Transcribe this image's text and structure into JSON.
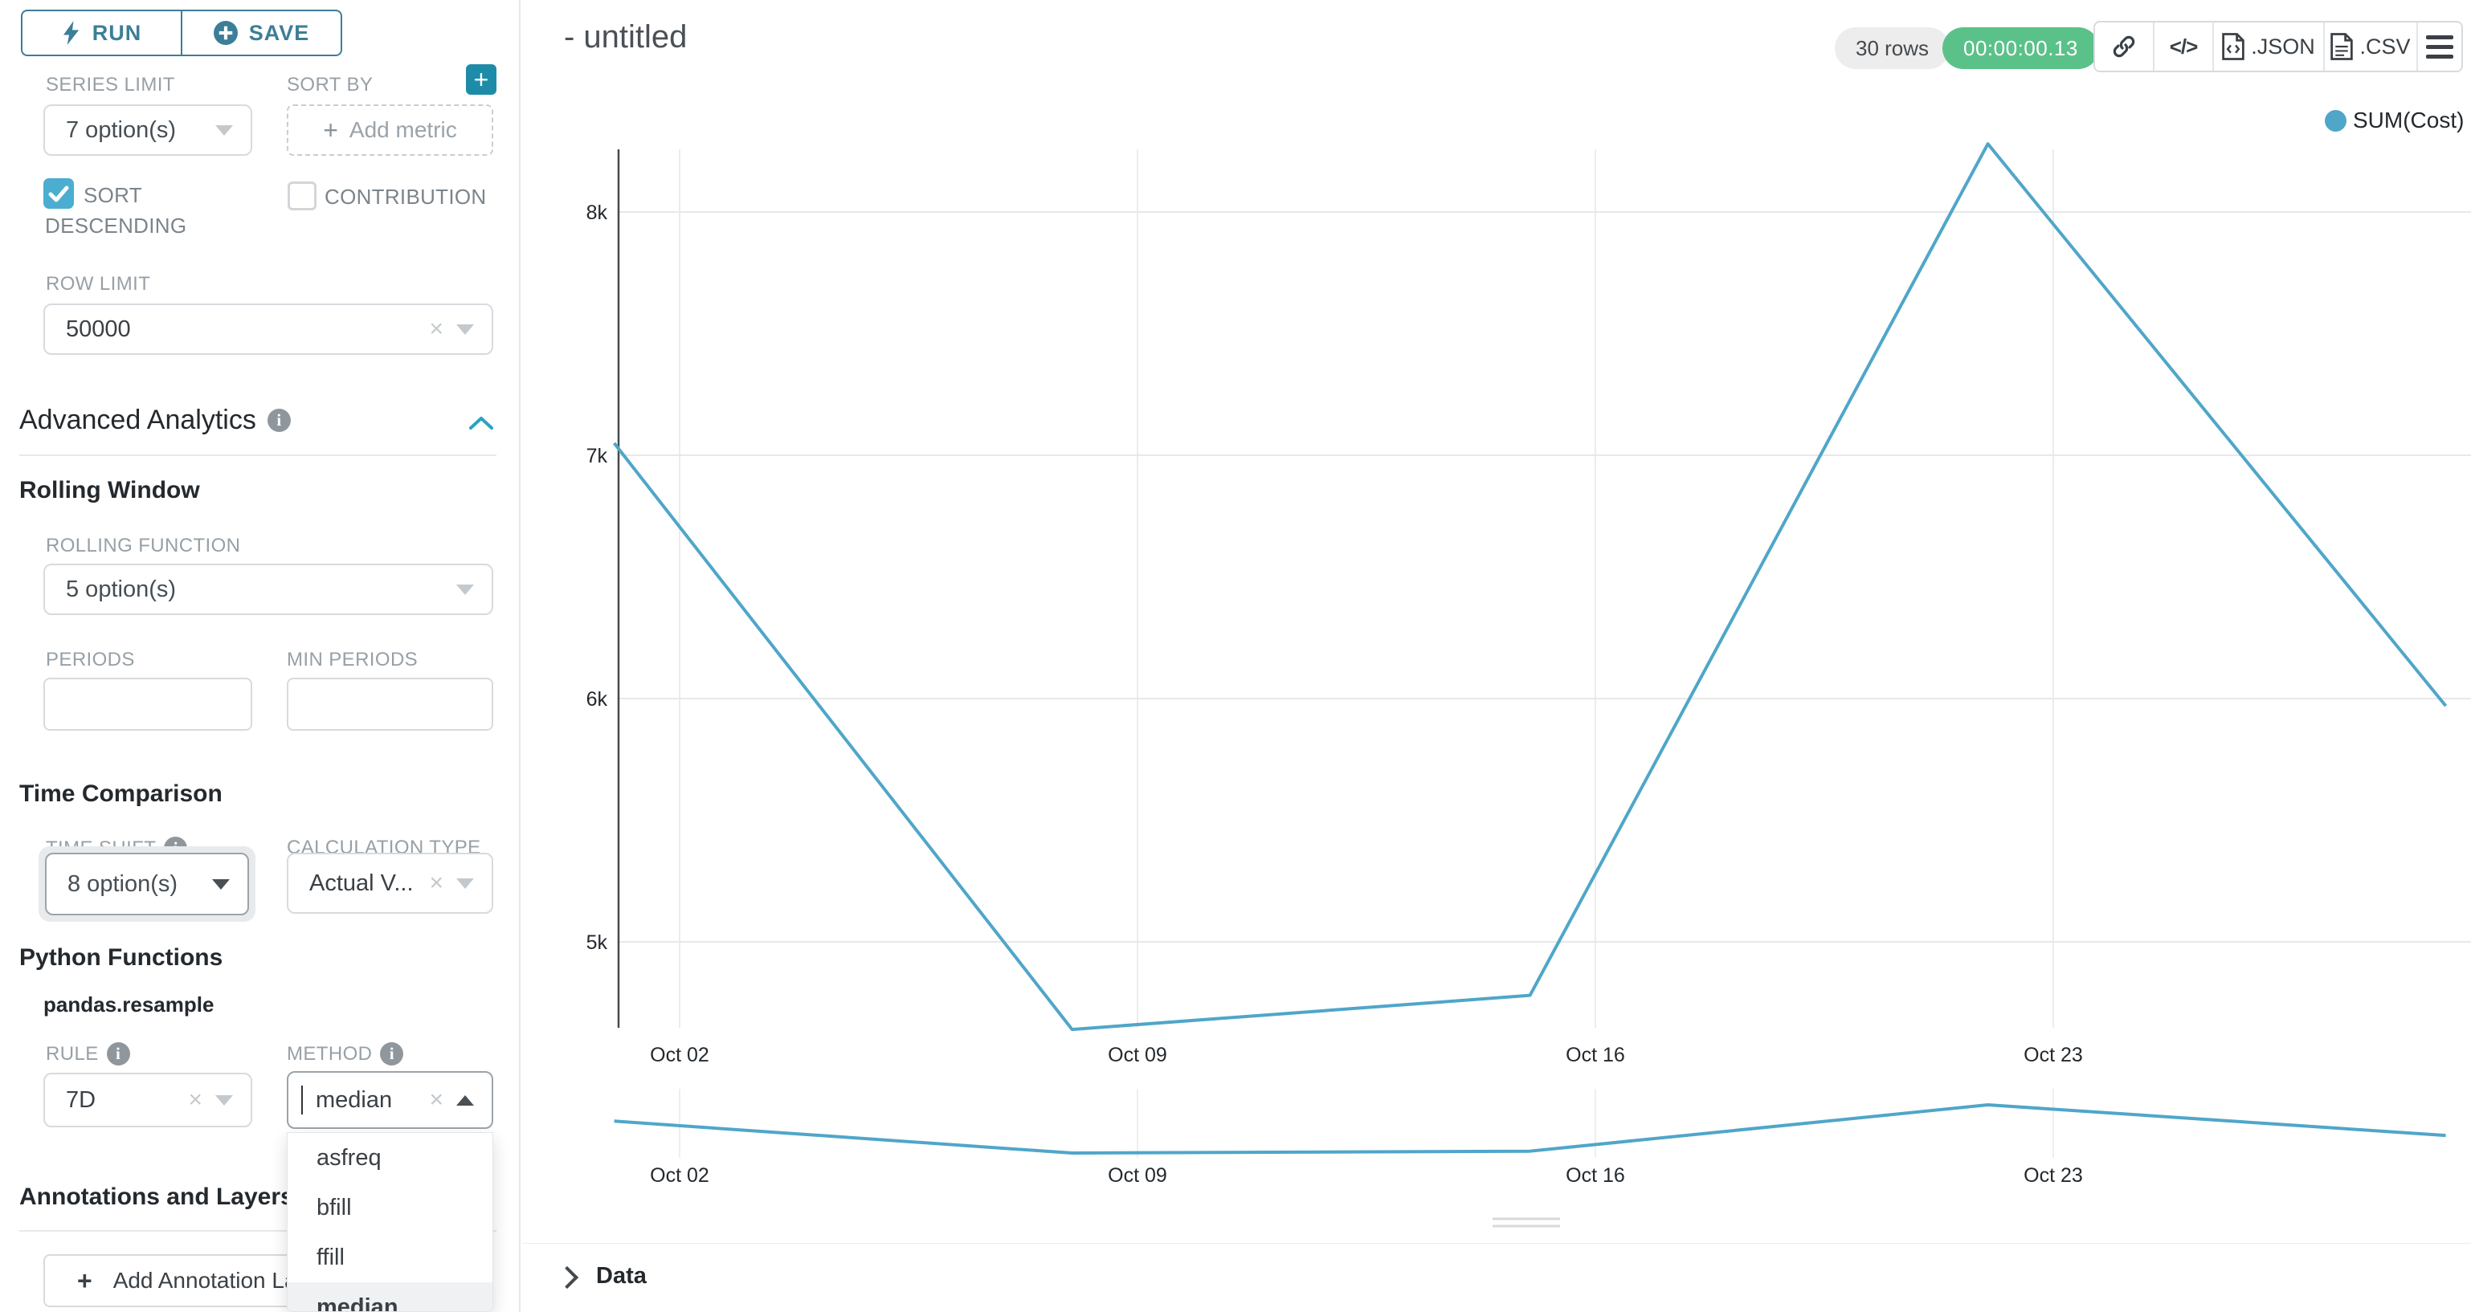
{
  "colors": {
    "primary": "#3d7e97",
    "accent": "#2ba2c2",
    "checkbox_checked": "#4baed0",
    "success_badge": "#5ac189",
    "line": "#4fa6c9"
  },
  "sidebar": {
    "run_button": "RUN",
    "save_button": "SAVE",
    "series_limit": {
      "label": "SERIES LIMIT",
      "value": "7 option(s)"
    },
    "sort_by": {
      "label": "SORT BY",
      "placeholder": "Add metric"
    },
    "sort_descending": {
      "label": "SORT DESCENDING",
      "checked": true
    },
    "contribution": {
      "label": "CONTRIBUTION",
      "checked": false
    },
    "row_limit": {
      "label": "ROW LIMIT",
      "value": "50000"
    },
    "advanced_analytics": {
      "title": "Advanced Analytics"
    },
    "rolling_window": {
      "title": "Rolling Window",
      "rolling_function": {
        "label": "ROLLING FUNCTION",
        "value": "5 option(s)"
      },
      "periods": {
        "label": "PERIODS",
        "value": ""
      },
      "min_periods": {
        "label": "MIN PERIODS",
        "value": ""
      }
    },
    "time_comparison": {
      "title": "Time Comparison",
      "time_shift": {
        "label": "TIME SHIFT",
        "value": "8 option(s)"
      },
      "calculation_type": {
        "label": "CALCULATION TYPE",
        "value": "Actual V..."
      }
    },
    "python_functions": {
      "title": "Python Functions",
      "subtitle": "pandas.resample",
      "rule": {
        "label": "RULE",
        "value": "7D"
      },
      "method": {
        "label": "METHOD",
        "value": "median",
        "options": [
          "asfreq",
          "bfill",
          "ffill",
          "median"
        ],
        "highlighted": "median"
      }
    },
    "annotations": {
      "title": "Annotations and Layers",
      "add_button": "Add Annotation Layer"
    }
  },
  "header": {
    "title": "- untitled",
    "rows_badge": "30 rows",
    "timer_badge": "00:00:00.13",
    "export_json_label": ".JSON",
    "export_csv_label": ".CSV"
  },
  "chart_data": {
    "type": "line",
    "title": "",
    "legend": [
      "SUM(Cost)"
    ],
    "legend_position": "top-right",
    "grid": true,
    "series": [
      {
        "name": "SUM(Cost)",
        "x": [
          "Oct 01",
          "Oct 08",
          "Oct 15",
          "Oct 22",
          "Oct 29"
        ],
        "values": [
          7050,
          4640,
          4780,
          8280,
          5970
        ]
      }
    ],
    "x_tick_labels": [
      "Oct 02",
      "Oct 09",
      "Oct 16",
      "Oct 23"
    ],
    "y_tick_labels": [
      "8k",
      "7k",
      "6k",
      "5k"
    ],
    "y_tick_values": [
      8000,
      7000,
      6000,
      5000
    ],
    "ylim": [
      4450,
      8450
    ],
    "brush_preview": "same series repeated in mini chart below main chart"
  },
  "data_panel": {
    "label": "Data"
  }
}
